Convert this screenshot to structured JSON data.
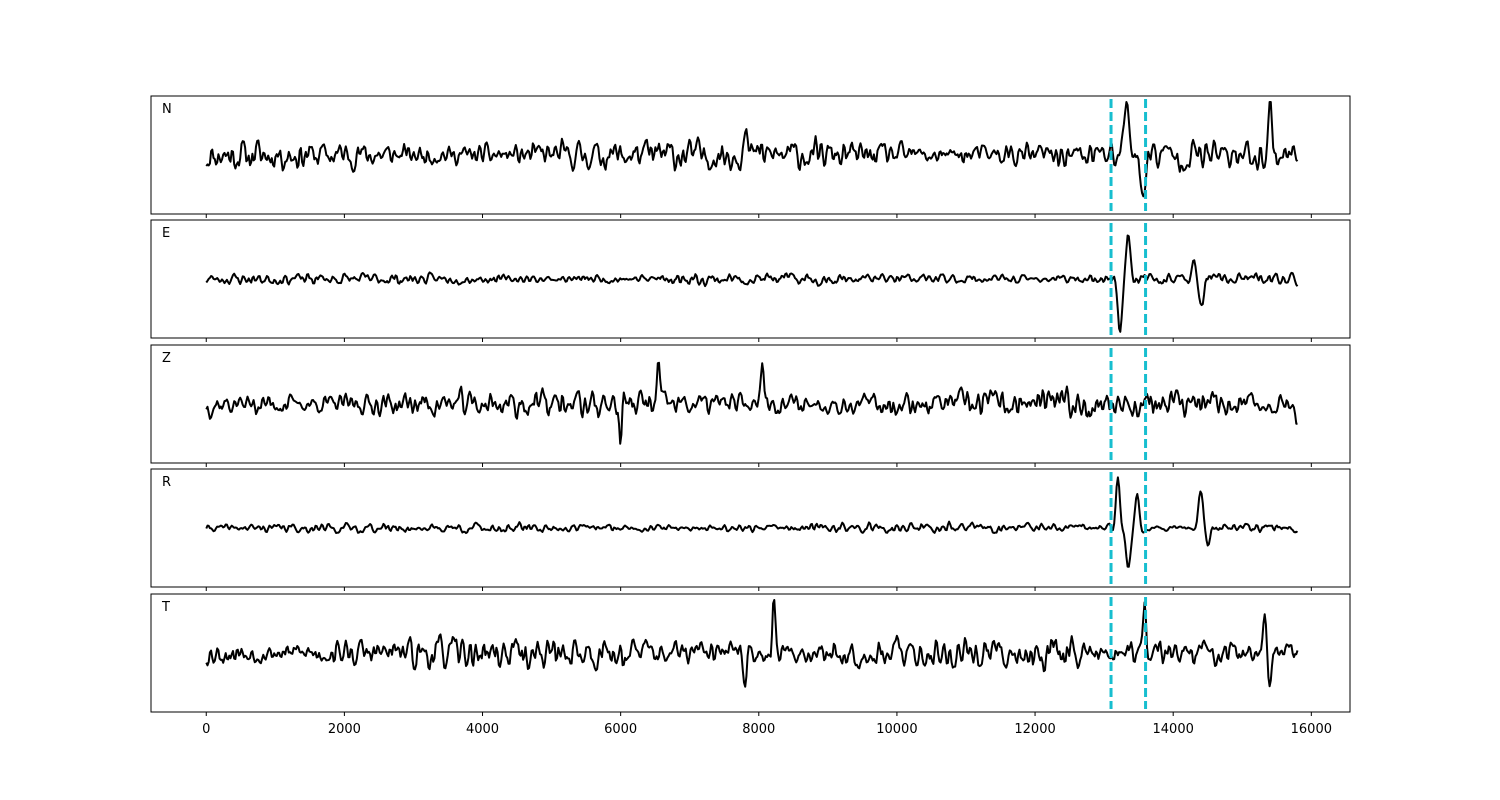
{
  "chart_data": {
    "type": "line",
    "title": "",
    "xlabel": "",
    "ylabel": "",
    "x_range": [
      0,
      15800
    ],
    "xlim": [
      -800,
      16560
    ],
    "x_ticks": [
      "0",
      "2000",
      "4000",
      "6000",
      "8000",
      "10000",
      "12000",
      "14000",
      "16000"
    ],
    "grid": false,
    "legend": "none",
    "trace_color": "#000000",
    "marker_color": "#17becf",
    "markers": [
      13100,
      13600
    ],
    "panels": [
      {
        "label": "N",
        "noise": 0.32,
        "peak": 1.0,
        "seed": 11,
        "events": [
          [
            13320,
            0.85,
            90
          ],
          [
            13550,
            -0.75,
            70
          ],
          [
            15400,
            0.9,
            60
          ],
          [
            7800,
            0.7,
            50
          ]
        ]
      },
      {
        "label": "E",
        "noise": 0.12,
        "peak": 1.0,
        "seed": 23,
        "events": [
          [
            13230,
            -0.95,
            60
          ],
          [
            13350,
            0.85,
            60
          ],
          [
            14400,
            -0.55,
            70
          ],
          [
            14300,
            0.35,
            60
          ]
        ]
      },
      {
        "label": "Z",
        "noise": 0.3,
        "peak": 1.0,
        "seed": 37,
        "events": [
          [
            8050,
            0.9,
            50
          ],
          [
            6550,
            0.7,
            40
          ],
          [
            5990,
            -0.6,
            40
          ],
          [
            15790,
            -0.4,
            40
          ]
        ]
      },
      {
        "label": "R",
        "noise": 0.1,
        "peak": 1.0,
        "seed": 41,
        "events": [
          [
            13200,
            1.0,
            50
          ],
          [
            13350,
            -0.7,
            60
          ],
          [
            13480,
            0.6,
            50
          ],
          [
            14400,
            0.7,
            60
          ],
          [
            14500,
            -0.35,
            50
          ]
        ]
      },
      {
        "label": "T",
        "noise": 0.34,
        "peak": 1.0,
        "seed": 53,
        "events": [
          [
            8220,
            0.95,
            40
          ],
          [
            7800,
            -0.7,
            40
          ],
          [
            13580,
            0.85,
            50
          ],
          [
            15400,
            -0.75,
            50
          ],
          [
            15330,
            0.7,
            50
          ]
        ]
      }
    ]
  }
}
